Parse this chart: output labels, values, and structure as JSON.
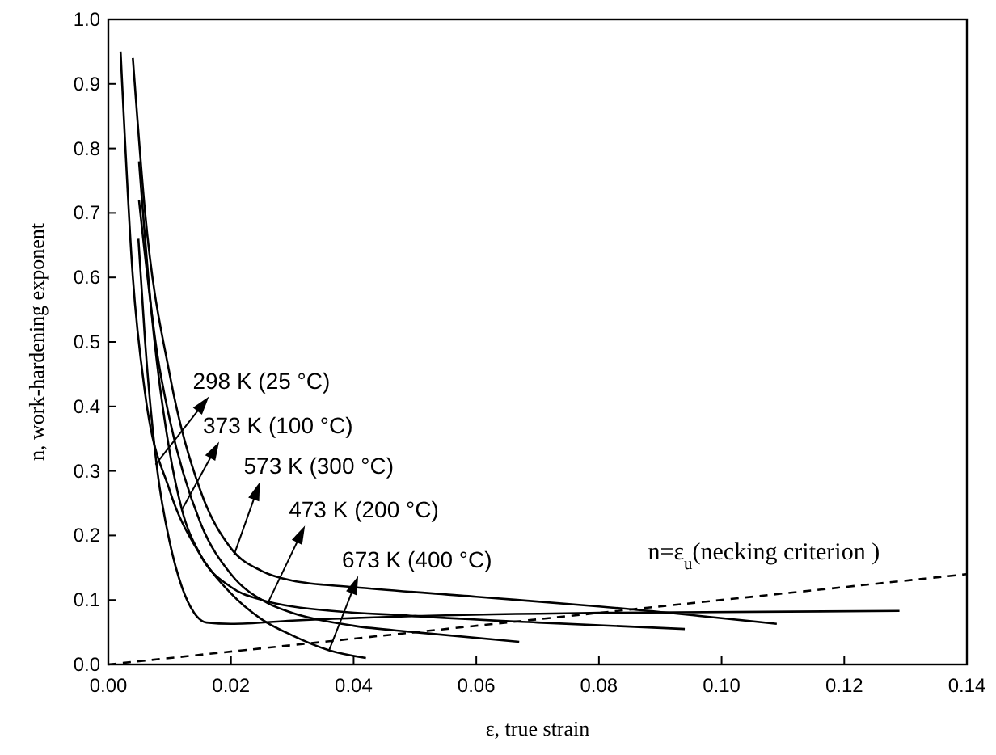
{
  "chart_data": {
    "type": "line",
    "xlabel": "ε, true strain",
    "ylabel": "n, work-hardening exponent",
    "xlim": [
      0,
      0.14
    ],
    "ylim": [
      0,
      1.0
    ],
    "xticks": [
      {
        "value": 0,
        "label": "0.00"
      },
      {
        "value": 0.02,
        "label": "0.02"
      },
      {
        "value": 0.04,
        "label": "0.04"
      },
      {
        "value": 0.06,
        "label": "0.06"
      },
      {
        "value": 0.08,
        "label": "0.08"
      },
      {
        "value": 0.1,
        "label": "0.10"
      },
      {
        "value": 0.12,
        "label": "0.12"
      },
      {
        "value": 0.14,
        "label": "0.14"
      }
    ],
    "yticks": [
      {
        "value": 0,
        "label": "0.0"
      },
      0.1,
      0.2,
      0.3,
      0.4,
      0.5,
      0.6,
      0.7,
      0.8,
      0.9,
      {
        "value": 1,
        "label": "1.0"
      }
    ],
    "grid": false,
    "marker": "none",
    "line_style": "solid",
    "series": [
      {
        "color": "#000000",
        "x": [
          0.0049,
          0.006,
          0.008,
          0.01,
          0.012,
          0.014,
          0.016,
          0.02,
          0.03,
          0.05,
          0.08,
          0.129
        ],
        "values": [
          0.66,
          0.5,
          0.3,
          0.19,
          0.12,
          0.08,
          0.065,
          0.063,
          0.068,
          0.075,
          0.08,
          0.083
        ]
      },
      {
        "color": "#000000",
        "x": [
          0.005,
          0.007,
          0.01,
          0.012,
          0.015,
          0.02,
          0.025,
          0.03,
          0.05,
          0.07,
          0.094
        ],
        "values": [
          0.78,
          0.55,
          0.33,
          0.24,
          0.17,
          0.12,
          0.1,
          0.09,
          0.075,
          0.065,
          0.055
        ]
      },
      {
        "color": "#000000",
        "x": [
          0.004,
          0.006,
          0.01,
          0.015,
          0.02,
          0.025,
          0.03,
          0.04,
          0.06,
          0.08,
          0.109
        ],
        "values": [
          0.94,
          0.7,
          0.45,
          0.27,
          0.18,
          0.145,
          0.13,
          0.12,
          0.105,
          0.09,
          0.063
        ]
      },
      {
        "color": "#000000",
        "x": [
          0.005,
          0.008,
          0.01,
          0.015,
          0.02,
          0.026,
          0.03,
          0.04,
          0.05,
          0.067
        ],
        "values": [
          0.72,
          0.48,
          0.38,
          0.22,
          0.14,
          0.095,
          0.08,
          0.06,
          0.05,
          0.035
        ]
      },
      {
        "color": "#000000",
        "x": [
          0.002,
          0.004,
          0.006,
          0.01,
          0.015,
          0.02,
          0.025,
          0.03,
          0.036,
          0.042
        ],
        "values": [
          0.95,
          0.6,
          0.42,
          0.27,
          0.17,
          0.11,
          0.07,
          0.045,
          0.022,
          0.01
        ]
      },
      {
        "name": "n=ε$_{u}$(necking criterion )",
        "color": "#000000",
        "line_style": "dashed",
        "x": [
          0,
          0.14
        ],
        "values": [
          0,
          0.14
        ]
      }
    ],
    "annotations": [
      {
        "text": "298 K (25 °C)",
        "x": 0.0077,
        "y": 0.31
      },
      {
        "text": "373 K (100 °C)",
        "x": 0.012,
        "y": 0.24
      },
      {
        "text": "573 K (300 °C)",
        "x": 0.0205,
        "y": 0.17
      },
      {
        "text": "473 K (200 °C)",
        "x": 0.026,
        "y": 0.095
      },
      {
        "text": "673 K (400 °C)",
        "x": 0.036,
        "y": 0.022
      }
    ]
  }
}
